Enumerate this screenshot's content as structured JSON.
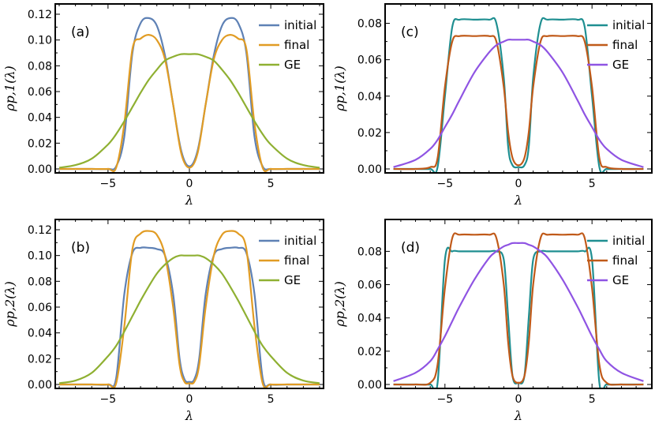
{
  "chart_data": [
    {
      "type": "line",
      "panel_label": "(a)",
      "xlabel": "λ",
      "ylabel": "ρp,1(λ)",
      "xlim": [
        -8,
        8
      ],
      "ylim": [
        0,
        0.12
      ],
      "xticks": [
        -5,
        0,
        5
      ],
      "yticks": [
        0.0,
        0.02,
        0.04,
        0.06,
        0.08,
        0.1,
        0.12
      ],
      "ytick_labels": [
        "0.00",
        "0.02",
        "0.04",
        "0.06",
        "0.08",
        "0.10",
        "0.12"
      ],
      "legend_position": "top-right",
      "x": [
        -8,
        -7,
        -6,
        -5,
        -4.5,
        -4,
        -3.5,
        -3,
        -2.5,
        -2,
        -1.5,
        -1,
        -0.5,
        0,
        0.5,
        1,
        1.5,
        2,
        2.5,
        3,
        3.5,
        4,
        4.5,
        5,
        6,
        7,
        8
      ],
      "series": [
        {
          "name": "initial",
          "color": "#5e81b5",
          "values": [
            0,
            0,
            0,
            0,
            0.002,
            0.025,
            0.09,
            0.113,
            0.117,
            0.111,
            0.088,
            0.05,
            0.014,
            0.002,
            0.014,
            0.05,
            0.088,
            0.111,
            0.117,
            0.113,
            0.09,
            0.025,
            0.002,
            0,
            0,
            0,
            0
          ]
        },
        {
          "name": "final",
          "color": "#e19c24",
          "values": [
            0,
            0,
            0,
            0,
            0.001,
            0.035,
            0.093,
            0.101,
            0.104,
            0.1,
            0.085,
            0.05,
            0.012,
            0.001,
            0.012,
            0.05,
            0.085,
            0.1,
            0.104,
            0.101,
            0.093,
            0.035,
            0.001,
            0,
            0,
            0,
            0
          ]
        },
        {
          "name": "GE",
          "color": "#8fb032",
          "values": [
            0.001,
            0.003,
            0.008,
            0.019,
            0.027,
            0.037,
            0.048,
            0.059,
            0.069,
            0.077,
            0.084,
            0.087,
            0.089,
            0.089,
            0.089,
            0.087,
            0.084,
            0.077,
            0.069,
            0.059,
            0.048,
            0.037,
            0.027,
            0.019,
            0.008,
            0.003,
            0.001
          ]
        }
      ]
    },
    {
      "type": "line",
      "panel_label": "(c)",
      "xlabel": "λ",
      "ylabel": "ρp,1(λ)",
      "xlim": [
        -8.8,
        8.8
      ],
      "ylim": [
        0,
        0.085
      ],
      "xticks": [
        -5,
        0,
        5
      ],
      "yticks": [
        0.0,
        0.02,
        0.04,
        0.06,
        0.08
      ],
      "ytick_labels": [
        "0.00",
        "0.02",
        "0.04",
        "0.06",
        "0.08"
      ],
      "legend_position": "top-right",
      "x": [
        -8.5,
        -7,
        -6,
        -5.5,
        -5,
        -4.5,
        -4,
        -3,
        -2,
        -1.5,
        -1,
        -0.7,
        -0.4,
        0,
        0.4,
        0.7,
        1,
        1.5,
        2,
        3,
        4,
        4.5,
        5,
        5.5,
        6,
        7,
        8.5
      ],
      "series": [
        {
          "name": "initial",
          "color": "#1f8f91",
          "values": [
            0,
            0,
            0,
            0.001,
            0.04,
            0.078,
            0.082,
            0.082,
            0.082,
            0.08,
            0.05,
            0.012,
            0.002,
            0.001,
            0.002,
            0.012,
            0.05,
            0.08,
            0.082,
            0.082,
            0.082,
            0.078,
            0.04,
            0.001,
            0,
            0,
            0
          ]
        },
        {
          "name": "final",
          "color": "#c05a19",
          "values": [
            0,
            0,
            0.001,
            0.006,
            0.045,
            0.07,
            0.073,
            0.073,
            0.073,
            0.07,
            0.045,
            0.02,
            0.006,
            0.002,
            0.006,
            0.02,
            0.045,
            0.07,
            0.073,
            0.073,
            0.073,
            0.07,
            0.045,
            0.006,
            0.001,
            0,
            0
          ]
        },
        {
          "name": "GE",
          "color": "#8f54e3",
          "values": [
            0.001,
            0.005,
            0.011,
            0.016,
            0.023,
            0.03,
            0.038,
            0.053,
            0.064,
            0.068,
            0.07,
            0.071,
            0.071,
            0.071,
            0.071,
            0.071,
            0.07,
            0.068,
            0.064,
            0.053,
            0.038,
            0.03,
            0.023,
            0.016,
            0.011,
            0.005,
            0.001
          ]
        }
      ]
    },
    {
      "type": "line",
      "panel_label": "(b)",
      "xlabel": "λ",
      "ylabel": "ρp,2(λ)",
      "xlim": [
        -8,
        8
      ],
      "ylim": [
        0,
        0.12
      ],
      "xticks": [
        -5,
        0,
        5
      ],
      "yticks": [
        0.0,
        0.02,
        0.04,
        0.06,
        0.08,
        0.1,
        0.12
      ],
      "ytick_labels": [
        "0.00",
        "0.02",
        "0.04",
        "0.06",
        "0.08",
        "0.10",
        "0.12"
      ],
      "legend_position": "top-right",
      "x": [
        -8,
        -7,
        -6,
        -5,
        -4.5,
        -4,
        -3.5,
        -3,
        -2.5,
        -2,
        -1.5,
        -1,
        -0.6,
        -0.3,
        0,
        0.3,
        0.6,
        1,
        1.5,
        2,
        2.5,
        3,
        3.5,
        4,
        4.5,
        5,
        6,
        7,
        8
      ],
      "series": [
        {
          "name": "initial",
          "color": "#5e81b5",
          "values": [
            0,
            0,
            0,
            0,
            0.005,
            0.07,
            0.102,
            0.106,
            0.106,
            0.105,
            0.1,
            0.07,
            0.02,
            0.004,
            0.002,
            0.004,
            0.02,
            0.07,
            0.1,
            0.105,
            0.106,
            0.106,
            0.102,
            0.07,
            0.005,
            0,
            0,
            0,
            0
          ]
        },
        {
          "name": "final",
          "color": "#e19c24",
          "values": [
            0,
            0,
            0,
            0,
            0.001,
            0.045,
            0.105,
            0.117,
            0.119,
            0.116,
            0.1,
            0.06,
            0.015,
            0.002,
            0.001,
            0.002,
            0.015,
            0.06,
            0.1,
            0.116,
            0.119,
            0.117,
            0.105,
            0.045,
            0.001,
            0,
            0,
            0,
            0
          ]
        },
        {
          "name": "GE",
          "color": "#8fb032",
          "values": [
            0.001,
            0.003,
            0.009,
            0.022,
            0.03,
            0.041,
            0.053,
            0.065,
            0.076,
            0.086,
            0.093,
            0.098,
            0.1,
            0.1,
            0.1,
            0.1,
            0.1,
            0.098,
            0.093,
            0.086,
            0.076,
            0.065,
            0.053,
            0.041,
            0.03,
            0.022,
            0.009,
            0.003,
            0.001
          ]
        }
      ]
    },
    {
      "type": "line",
      "panel_label": "(d)",
      "xlabel": "λ",
      "ylabel": "ρp,2(λ)",
      "xlim": [
        -8.8,
        8.8
      ],
      "ylim": [
        0,
        0.093
      ],
      "xticks": [
        -5,
        0,
        5
      ],
      "yticks": [
        0.0,
        0.02,
        0.04,
        0.06,
        0.08
      ],
      "ytick_labels": [
        "0.00",
        "0.02",
        "0.04",
        "0.06",
        "0.08"
      ],
      "legend_position": "top-right",
      "x": [
        -8.5,
        -7,
        -6,
        -5.5,
        -5,
        -4.5,
        -4,
        -3,
        -2,
        -1.5,
        -1,
        -0.7,
        -0.4,
        0,
        0.4,
        0.7,
        1,
        1.5,
        2,
        3,
        4,
        4.5,
        5,
        5.5,
        6,
        7,
        8.5
      ],
      "series": [
        {
          "name": "initial",
          "color": "#1f8f91",
          "values": [
            0,
            0,
            0,
            0.001,
            0.075,
            0.08,
            0.08,
            0.08,
            0.08,
            0.08,
            0.075,
            0.04,
            0.005,
            0.001,
            0.005,
            0.04,
            0.075,
            0.08,
            0.08,
            0.08,
            0.08,
            0.08,
            0.075,
            0.001,
            0,
            0,
            0
          ]
        },
        {
          "name": "final",
          "color": "#c05a19",
          "values": [
            0,
            0,
            0.001,
            0.012,
            0.058,
            0.088,
            0.09,
            0.09,
            0.09,
            0.088,
            0.06,
            0.025,
            0.005,
            0.001,
            0.005,
            0.025,
            0.06,
            0.088,
            0.09,
            0.09,
            0.09,
            0.088,
            0.058,
            0.012,
            0.001,
            0,
            0
          ]
        },
        {
          "name": "GE",
          "color": "#8f54e3",
          "values": [
            0.002,
            0.007,
            0.014,
            0.021,
            0.029,
            0.038,
            0.047,
            0.063,
            0.076,
            0.08,
            0.083,
            0.084,
            0.085,
            0.085,
            0.085,
            0.084,
            0.083,
            0.08,
            0.076,
            0.063,
            0.047,
            0.038,
            0.029,
            0.021,
            0.014,
            0.007,
            0.002
          ]
        }
      ]
    }
  ]
}
